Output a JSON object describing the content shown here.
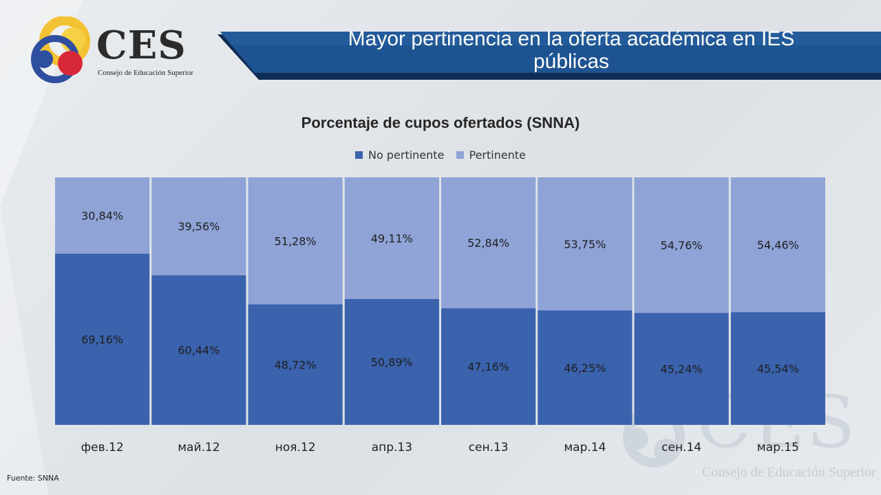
{
  "header": {
    "logo_word": "CES",
    "logo_subtitle": "Consejo de Educación Superior",
    "title_line1": "Mayor pertinencia en la oferta académica en IES",
    "title_line2": "públicas"
  },
  "colors": {
    "no_pertinente": "#3a62ad",
    "pertinente": "#8fa3d6",
    "banner": "#1d4e87",
    "banner_shadow": "#0f2c55"
  },
  "chart_data": {
    "type": "bar",
    "stacked": true,
    "title": "Porcentaje de cupos ofertados (SNNA)",
    "legend_position": "top-center",
    "categories": [
      "фев.12",
      "май.12",
      "ноя.12",
      "апр.13",
      "сен.13",
      "мар.14",
      "сен.14",
      "мар.15"
    ],
    "series": [
      {
        "name": "No pertinente",
        "values": [
          69.16,
          60.44,
          48.72,
          50.89,
          47.16,
          46.25,
          45.24,
          45.54
        ],
        "labels": [
          "69,16%",
          "60,44%",
          "48,72%",
          "50,89%",
          "47,16%",
          "46,25%",
          "45,24%",
          "45,54%"
        ]
      },
      {
        "name": "Pertinente",
        "values": [
          30.84,
          39.56,
          51.28,
          49.11,
          52.84,
          53.75,
          54.76,
          54.46
        ],
        "labels": [
          "30,84%",
          "39,56%",
          "51,28%",
          "49,11%",
          "52,84%",
          "53,75%",
          "54,76%",
          "54,46%"
        ]
      }
    ],
    "ylim": [
      0,
      100
    ],
    "xlabel": "",
    "ylabel": ""
  },
  "footer": {
    "source": "Fuente: SNNA"
  },
  "watermark": {
    "word": "CES",
    "subtitle": "Consejo de Educación Superior"
  }
}
